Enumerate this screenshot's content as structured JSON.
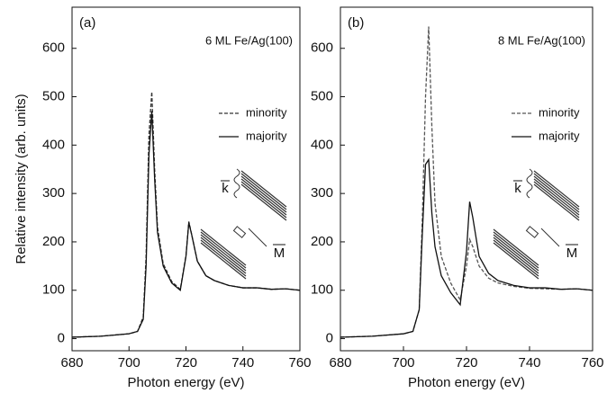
{
  "chart_data": [
    {
      "type": "line",
      "panel_label": "(a)",
      "title": "6 ML Fe/Ag(100)",
      "xlabel": "Photon energy (eV)",
      "ylabel": "Relative intensity (arb. units)",
      "annotations": [
        "k",
        "M"
      ],
      "x": [
        680,
        690,
        700,
        703,
        705,
        706,
        707,
        708,
        709,
        710,
        712,
        715,
        718,
        720,
        721,
        722,
        724,
        727,
        730,
        735,
        740,
        745,
        750,
        755,
        760
      ],
      "series": [
        {
          "name": "minority",
          "color": "#333333",
          "linestyle": "dashed",
          "values": [
            3,
            5,
            10,
            15,
            45,
            170,
            420,
            510,
            350,
            230,
            155,
            118,
            102,
            172,
            242,
            215,
            160,
            130,
            120,
            110,
            105,
            105,
            102,
            103,
            100
          ]
        },
        {
          "name": "majority",
          "color": "#111111",
          "linestyle": "solid",
          "values": [
            3,
            5,
            10,
            15,
            40,
            150,
            380,
            470,
            330,
            220,
            150,
            115,
            100,
            170,
            240,
            215,
            160,
            130,
            120,
            110,
            105,
            105,
            102,
            103,
            100
          ]
        }
      ],
      "xlim": [
        680,
        760
      ],
      "xticks": [
        680,
        700,
        720,
        740,
        760
      ],
      "ylim": [
        -25,
        685
      ],
      "yticks": [
        0,
        100,
        200,
        300,
        400,
        500,
        600
      ],
      "grid": false
    },
    {
      "type": "line",
      "panel_label": "(b)",
      "title": "8 ML Fe/Ag(100)",
      "xlabel": "Photon energy (eV)",
      "annotations": [
        "k",
        "M"
      ],
      "x": [
        680,
        690,
        700,
        703,
        705,
        706,
        707,
        708,
        709,
        710,
        712,
        715,
        718,
        720,
        721,
        722,
        724,
        727,
        730,
        735,
        740,
        745,
        750,
        755,
        760
      ],
      "series": [
        {
          "name": "minority",
          "color": "#555555",
          "linestyle": "dashed",
          "values": [
            3,
            5,
            10,
            15,
            60,
            250,
            500,
            645,
            440,
            280,
            170,
            115,
            80,
            150,
            205,
            190,
            150,
            125,
            115,
            108,
            104,
            103,
            102,
            103,
            100
          ]
        },
        {
          "name": "majority",
          "color": "#111111",
          "linestyle": "solid",
          "values": [
            3,
            5,
            10,
            15,
            60,
            220,
            360,
            370,
            260,
            190,
            130,
            95,
            70,
            180,
            283,
            250,
            170,
            135,
            120,
            110,
            105,
            105,
            102,
            103,
            100
          ]
        }
      ],
      "xlim": [
        680,
        760
      ],
      "xticks": [
        680,
        700,
        720,
        740,
        760
      ],
      "ylim": [
        -25,
        685
      ],
      "yticks": [
        0,
        100,
        200,
        300,
        400,
        500,
        600
      ],
      "grid": false
    }
  ]
}
